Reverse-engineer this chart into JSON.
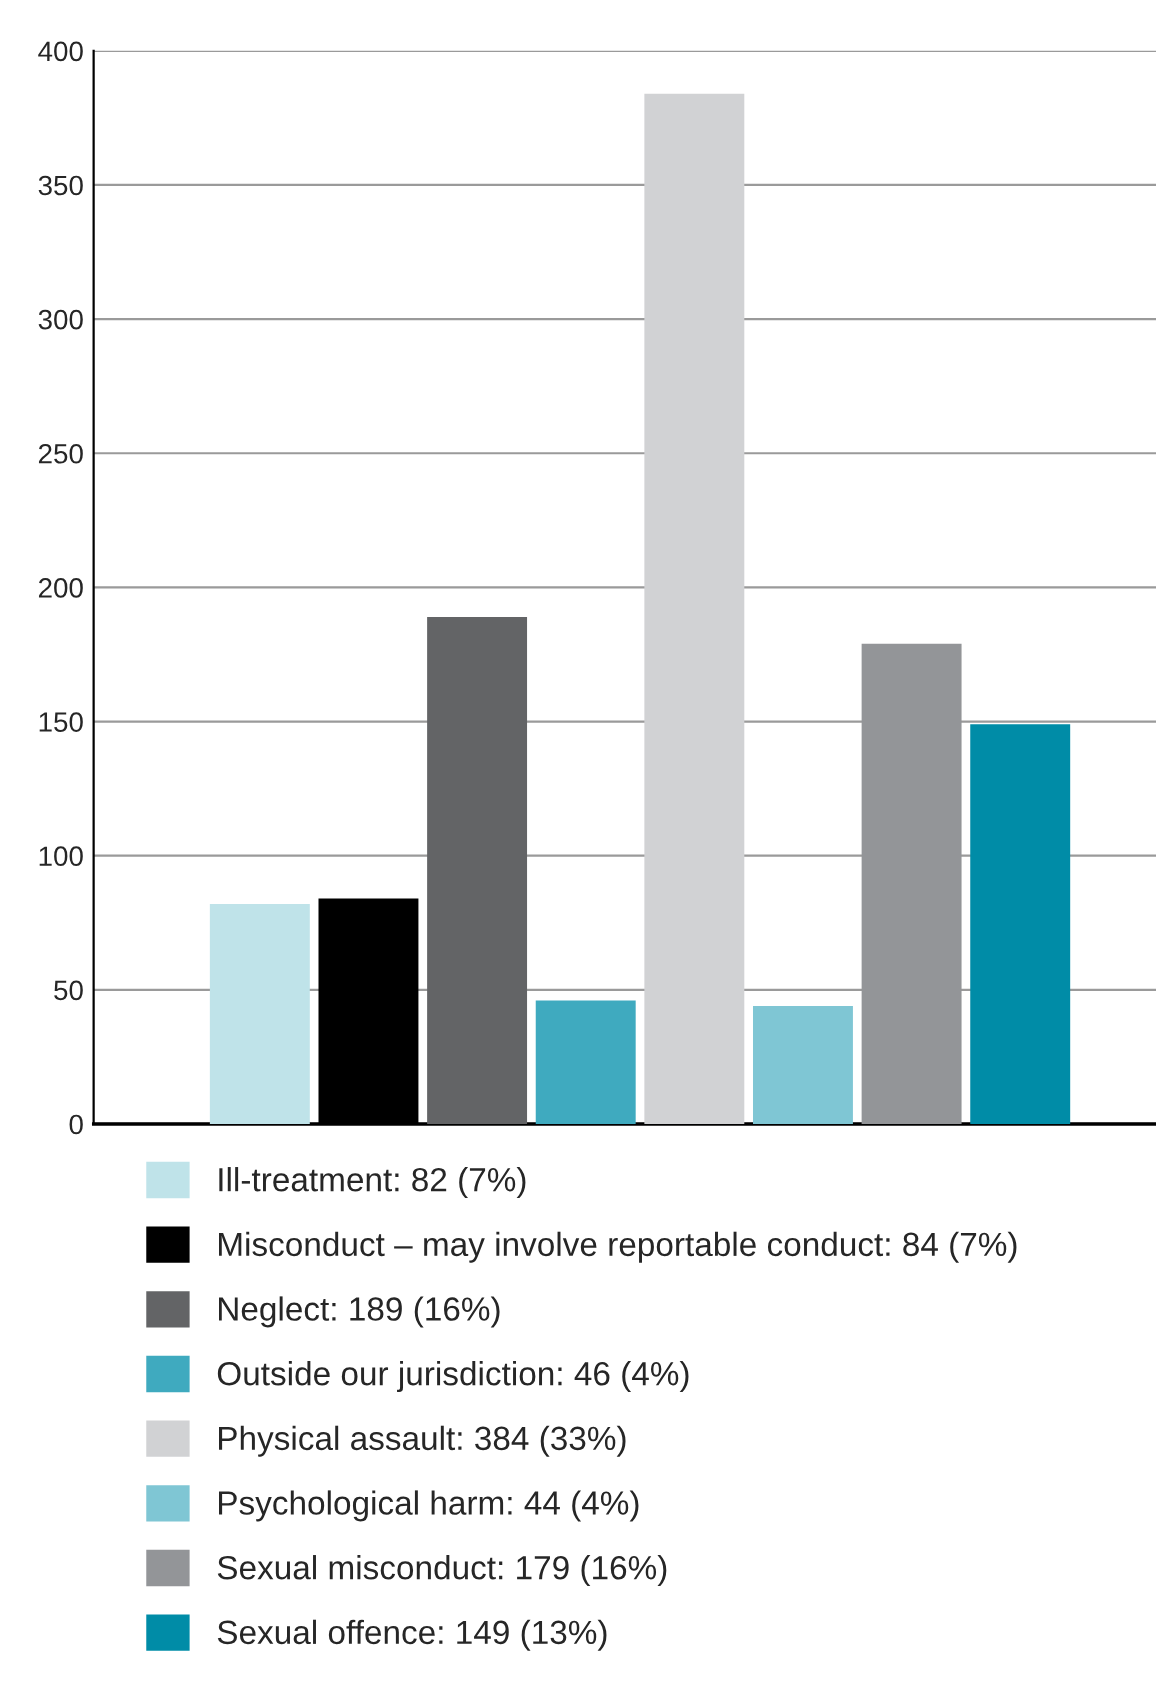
{
  "chart_data": {
    "type": "bar",
    "categories": [
      null
    ],
    "series": [
      {
        "name": "Ill-treatment: 82 (7%)",
        "color": "#bfe3e9",
        "values": [
          82
        ]
      },
      {
        "name": "Misconduct – may involve reportable conduct: 84 (7%)",
        "color": "#000000",
        "values": [
          84
        ]
      },
      {
        "name": "Neglect: 189 (16%)",
        "color": "#636466",
        "values": [
          189
        ]
      },
      {
        "name": "Outside our jurisdiction: 46 (4%)",
        "color": "#3faabf",
        "values": [
          46
        ]
      },
      {
        "name": "Physical assault: 384 (33%)",
        "color": "#d1d2d4",
        "values": [
          384
        ]
      },
      {
        "name": "Psychological harm: 44 (4%)",
        "color": "#7fc6d4",
        "values": [
          44
        ]
      },
      {
        "name": "Sexual misconduct: 179 (16%)",
        "color": "#939598",
        "values": [
          179
        ]
      },
      {
        "name": "Sexual offence: 149 (13%)",
        "color": "#008ca7",
        "values": [
          149
        ]
      }
    ],
    "ylim": [
      0,
      400
    ],
    "yticks": [
      0,
      50,
      100,
      150,
      200,
      250,
      300,
      350,
      400
    ],
    "grid": "y",
    "legend": "bottom"
  }
}
